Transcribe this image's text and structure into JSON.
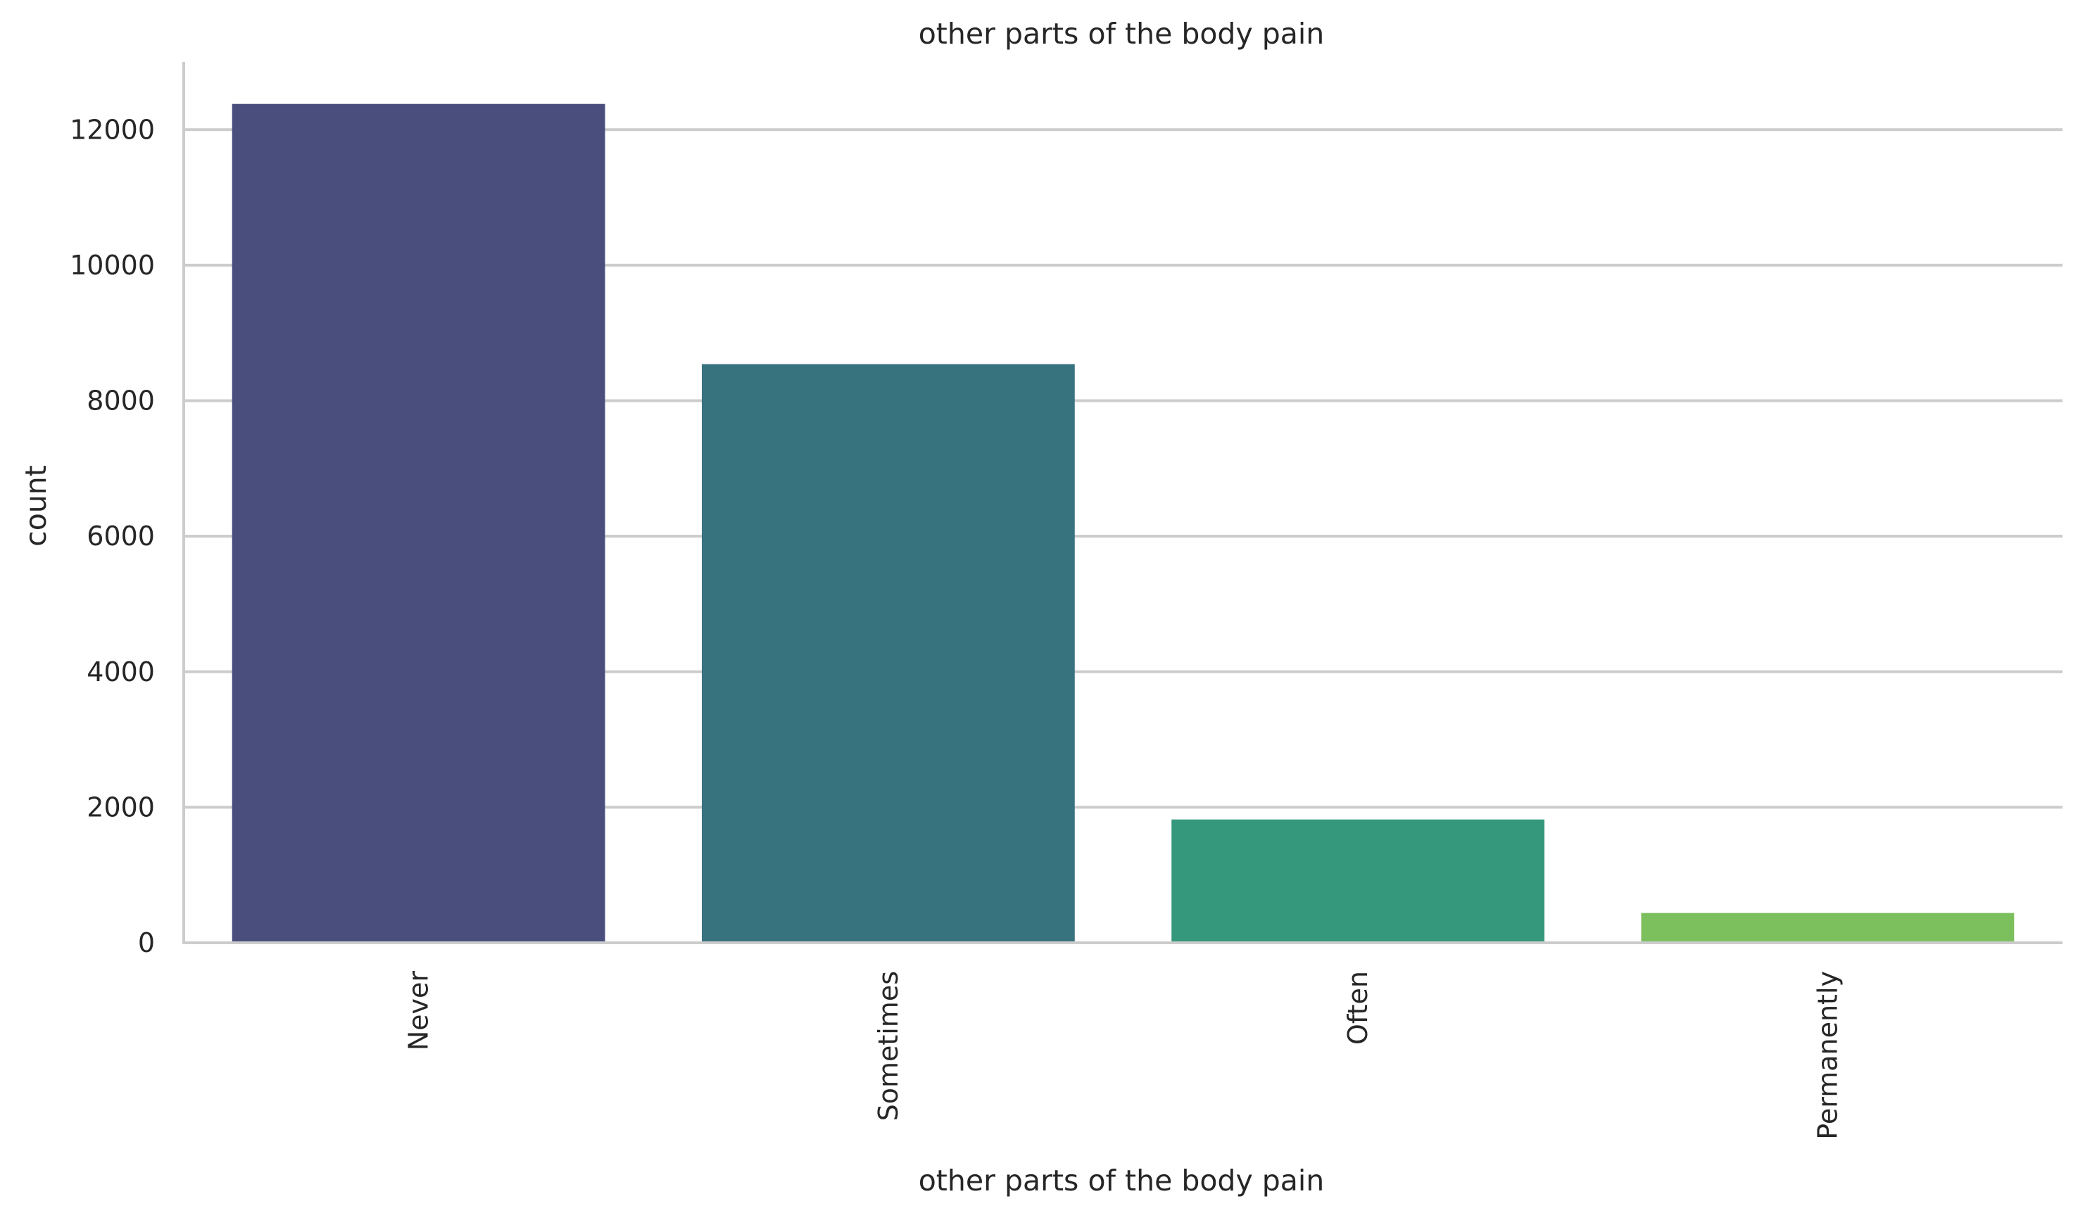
{
  "chart_data": {
    "type": "bar",
    "title": "other parts of the body pain",
    "xlabel": "other parts of the body pain",
    "ylabel": "count",
    "categories": [
      "Never",
      "Sometimes",
      "Often",
      "Permanently"
    ],
    "values": [
      12380,
      8540,
      1820,
      440
    ],
    "ylim": [
      0,
      13000
    ],
    "yticks": [
      0,
      2000,
      4000,
      6000,
      8000,
      10000,
      12000
    ],
    "ytick_labels": [
      "0",
      "2000",
      "4000",
      "6000",
      "8000",
      "10000",
      "12000"
    ],
    "colors": [
      "#4a4e7d",
      "#37727f",
      "#35977c",
      "#7cc05e"
    ],
    "grid": "horizontal",
    "grid_color": "#cccccc",
    "axis_color": "#cccccc",
    "xtick_rotation": "vertical"
  }
}
